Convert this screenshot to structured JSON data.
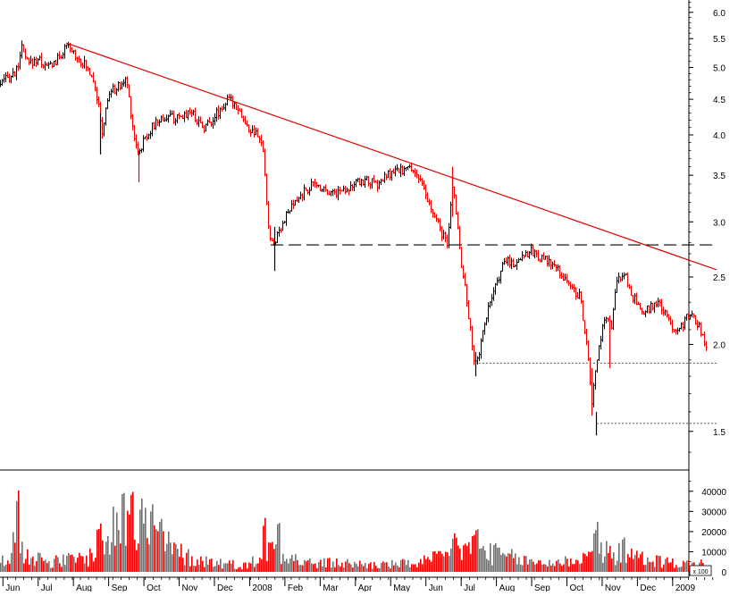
{
  "chart_data": {
    "type": "candlestick_with_volume",
    "title": "",
    "price_axis": {
      "scale": "log",
      "ylim": [
        1.32,
        6.25
      ],
      "ticks": [
        "6.0",
        "5.5",
        "5.0",
        "4.5",
        "4.0",
        "3.5",
        "3.0",
        "2.5",
        "2.0",
        "1.5"
      ],
      "tick_values": [
        6.0,
        5.5,
        5.0,
        4.5,
        4.0,
        3.5,
        3.0,
        2.5,
        2.0,
        1.5
      ]
    },
    "volume_axis": {
      "ylim": [
        0,
        47000
      ],
      "ticks": [
        "40000",
        "30000",
        "20000",
        "10000",
        "0"
      ],
      "tick_values": [
        40000,
        30000,
        20000,
        10000,
        0
      ],
      "unit_label": "x 100"
    },
    "x_axis": {
      "labels": [
        "Jun",
        "Jul",
        "Aug",
        "Sep",
        "Oct",
        "Nov",
        "Dec",
        "2008",
        "Feb",
        "Mar",
        "Apr",
        "May",
        "Jun",
        "Jul",
        "Aug",
        "Sep",
        "Oct",
        "Nov",
        "Dec",
        "2009"
      ],
      "month_index": [
        0,
        1,
        2,
        3,
        4,
        5,
        6,
        7,
        8,
        9,
        10,
        11,
        12,
        13,
        14,
        15,
        16,
        17,
        18,
        19
      ],
      "range": [
        -0.5,
        19.85
      ]
    },
    "price_path": [
      [
        -0.5,
        4.72
      ],
      [
        0.0,
        4.95
      ],
      [
        0.1,
        5.35
      ],
      [
        0.3,
        5.05
      ],
      [
        0.6,
        5.15
      ],
      [
        0.8,
        5.0
      ],
      [
        1.1,
        5.1
      ],
      [
        1.4,
        5.35
      ],
      [
        1.6,
        5.25
      ],
      [
        1.9,
        5.05
      ],
      [
        2.15,
        4.85
      ],
      [
        2.3,
        4.4
      ],
      [
        2.4,
        4.0
      ],
      [
        2.6,
        4.6
      ],
      [
        2.9,
        4.7
      ],
      [
        3.1,
        4.8
      ],
      [
        3.3,
        4.0
      ],
      [
        3.45,
        3.75
      ],
      [
        3.6,
        3.95
      ],
      [
        3.75,
        4.05
      ],
      [
        4.0,
        4.2
      ],
      [
        4.3,
        4.25
      ],
      [
        4.6,
        4.2
      ],
      [
        4.9,
        4.35
      ],
      [
        5.1,
        4.2
      ],
      [
        5.3,
        4.1
      ],
      [
        5.5,
        4.2
      ],
      [
        5.75,
        4.35
      ],
      [
        6.0,
        4.5
      ],
      [
        6.25,
        4.4
      ],
      [
        6.5,
        4.1
      ],
      [
        6.75,
        4.0
      ],
      [
        6.95,
        3.9
      ],
      [
        7.05,
        3.3
      ],
      [
        7.15,
        2.85
      ],
      [
        7.25,
        2.78
      ],
      [
        7.4,
        2.9
      ],
      [
        7.6,
        3.05
      ],
      [
        7.8,
        3.15
      ],
      [
        8.1,
        3.3
      ],
      [
        8.4,
        3.4
      ],
      [
        8.7,
        3.35
      ],
      [
        9.0,
        3.3
      ],
      [
        9.3,
        3.35
      ],
      [
        9.6,
        3.4
      ],
      [
        9.9,
        3.45
      ],
      [
        10.2,
        3.38
      ],
      [
        10.5,
        3.5
      ],
      [
        10.8,
        3.55
      ],
      [
        11.1,
        3.58
      ],
      [
        11.3,
        3.55
      ],
      [
        11.5,
        3.35
      ],
      [
        11.7,
        3.15
      ],
      [
        11.9,
        3.0
      ],
      [
        12.1,
        2.85
      ],
      [
        12.2,
        2.75
      ],
      [
        12.35,
        3.4
      ],
      [
        12.45,
        3.1
      ],
      [
        12.6,
        2.6
      ],
      [
        12.8,
        2.2
      ],
      [
        12.95,
        1.88
      ],
      [
        13.1,
        1.95
      ],
      [
        13.3,
        2.2
      ],
      [
        13.5,
        2.35
      ],
      [
        13.7,
        2.55
      ],
      [
        13.9,
        2.65
      ],
      [
        14.1,
        2.6
      ],
      [
        14.35,
        2.7
      ],
      [
        14.6,
        2.72
      ],
      [
        14.9,
        2.65
      ],
      [
        15.2,
        2.6
      ],
      [
        15.5,
        2.5
      ],
      [
        15.75,
        2.4
      ],
      [
        15.95,
        2.35
      ],
      [
        16.1,
        2.1
      ],
      [
        16.3,
        1.65
      ],
      [
        16.45,
        1.9
      ],
      [
        16.6,
        2.1
      ],
      [
        16.75,
        2.2
      ],
      [
        16.85,
        2.1
      ],
      [
        17.0,
        2.45
      ],
      [
        17.2,
        2.55
      ],
      [
        17.35,
        2.4
      ],
      [
        17.55,
        2.3
      ],
      [
        17.7,
        2.2
      ],
      [
        17.9,
        2.25
      ],
      [
        18.1,
        2.3
      ],
      [
        18.3,
        2.25
      ],
      [
        18.5,
        2.15
      ],
      [
        18.7,
        2.1
      ],
      [
        18.9,
        2.15
      ],
      [
        19.05,
        2.2
      ],
      [
        19.2,
        2.18
      ],
      [
        19.35,
        2.12
      ],
      [
        19.5,
        2.02
      ],
      [
        19.55,
        1.95
      ]
    ],
    "spikes": [
      [
        2.35,
        3.75,
        4.3
      ],
      [
        3.45,
        3.42,
        3.8
      ],
      [
        7.3,
        2.55,
        2.95
      ],
      [
        12.35,
        3.05,
        3.6
      ],
      [
        13.0,
        1.8,
        1.95
      ],
      [
        16.3,
        1.58,
        1.85
      ],
      [
        16.42,
        1.48,
        1.6
      ],
      [
        16.8,
        1.85,
        2.2
      ]
    ],
    "annotations": {
      "trendline": {
        "from": [
          1.4,
          5.42
        ],
        "to": [
          19.85,
          2.56
        ]
      },
      "resistance_dashed": {
        "from": [
          7.2,
          2.78
        ],
        "to": [
          19.85,
          2.78
        ]
      },
      "support_dotted": [
        {
          "from": [
            13.0,
            1.88
          ],
          "to": [
            19.85,
            1.88
          ]
        },
        {
          "from": [
            16.45,
            1.54
          ],
          "to": [
            19.85,
            1.54
          ]
        }
      ]
    },
    "volume_profile": [
      [
        -0.5,
        6000
      ],
      [
        0.0,
        14000
      ],
      [
        0.2,
        11000
      ],
      [
        0.5,
        7000
      ],
      [
        1.0,
        5000
      ],
      [
        1.5,
        6000
      ],
      [
        2.0,
        7000
      ],
      [
        2.5,
        15000
      ],
      [
        3.0,
        26000
      ],
      [
        3.2,
        32000
      ],
      [
        3.5,
        24000
      ],
      [
        4.0,
        16000
      ],
      [
        4.5,
        10000
      ],
      [
        5.0,
        6000
      ],
      [
        5.5,
        5000
      ],
      [
        6.0,
        4000
      ],
      [
        6.5,
        3000
      ],
      [
        7.0,
        9000
      ],
      [
        7.3,
        14000
      ],
      [
        7.6,
        9000
      ],
      [
        8.0,
        5000
      ],
      [
        8.5,
        4000
      ],
      [
        9.0,
        4500
      ],
      [
        9.5,
        4000
      ],
      [
        10.0,
        3500
      ],
      [
        10.5,
        3500
      ],
      [
        11.0,
        4000
      ],
      [
        11.5,
        5000
      ],
      [
        12.0,
        7000
      ],
      [
        12.5,
        10000
      ],
      [
        13.0,
        12000
      ],
      [
        13.5,
        9000
      ],
      [
        14.0,
        7000
      ],
      [
        14.5,
        5000
      ],
      [
        15.0,
        4500
      ],
      [
        15.5,
        5000
      ],
      [
        16.0,
        7000
      ],
      [
        16.5,
        10000
      ],
      [
        17.0,
        9000
      ],
      [
        17.5,
        7000
      ],
      [
        18.0,
        6000
      ],
      [
        18.5,
        4500
      ],
      [
        19.0,
        4000
      ],
      [
        19.55,
        4000
      ]
    ],
    "volume_peaks": [
      [
        0.0,
        46000
      ],
      [
        3.0,
        44000
      ],
      [
        3.25,
        46000
      ],
      [
        3.5,
        38000
      ],
      [
        3.8,
        35000
      ],
      [
        7.0,
        29000
      ],
      [
        7.4,
        31000
      ],
      [
        12.4,
        21000
      ],
      [
        13.0,
        23000
      ],
      [
        16.4,
        25000
      ],
      [
        17.2,
        21000
      ],
      [
        2.3,
        27000
      ],
      [
        4.05,
        29000
      ]
    ],
    "grid": false,
    "legend": "none",
    "colors": {
      "price_up": "#000000",
      "price_down": "#ee0000",
      "volume_up": "#707070",
      "volume_down": "#ee0000",
      "trendline": "#dd0000",
      "lines": "#000000",
      "text": "#000000",
      "background": "#ffffff"
    }
  }
}
